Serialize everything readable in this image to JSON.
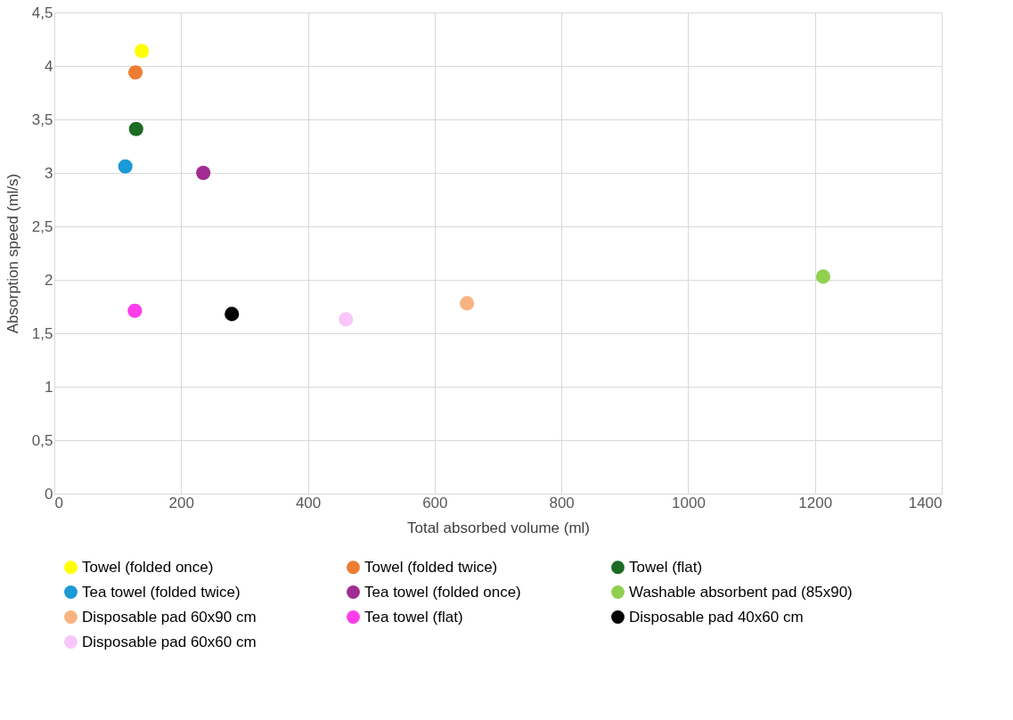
{
  "chart_data": {
    "type": "scatter",
    "xlabel": "Total absorbed volume (ml)",
    "ylabel": "Absorption speed (ml/s)",
    "xlim": [
      0,
      1400
    ],
    "xticks": [
      0,
      200,
      400,
      600,
      800,
      1000,
      1200,
      1400
    ],
    "ylim": [
      0,
      4.5
    ],
    "yticks": [
      0,
      {
        "value": 0.5,
        "label": "0,5"
      },
      1,
      {
        "value": 1.5,
        "label": "1,5"
      },
      2,
      {
        "value": 2.5,
        "label": "2,5"
      },
      3,
      {
        "value": 3.5,
        "label": "3,5"
      },
      4,
      {
        "value": 4.5,
        "label": "4,5"
      }
    ],
    "grid": true,
    "legend": "bottom",
    "marker": "circle",
    "series": [
      {
        "name": "Towel (folded once)",
        "color": "#ffff00",
        "x": [
          138
        ],
        "values": [
          4.14
        ]
      },
      {
        "name": "Towel (folded twice)",
        "color": "#ed7d31",
        "x": [
          128
        ],
        "values": [
          3.94
        ]
      },
      {
        "name": "Towel (flat)",
        "color": "#1e6b24",
        "x": [
          129
        ],
        "values": [
          3.41
        ]
      },
      {
        "name": "Tea towel (folded twice)",
        "color": "#1a9ad6",
        "x": [
          112
        ],
        "values": [
          3.06
        ]
      },
      {
        "name": "Tea towel (folded once)",
        "color": "#a02b93",
        "x": [
          235
        ],
        "values": [
          3.0
        ]
      },
      {
        "name": "Washable absorbent pad (85x90)",
        "color": "#8fd14f",
        "x": [
          1213
        ],
        "values": [
          2.03
        ]
      },
      {
        "name": "Disposable pad 60x90 cm",
        "color": "#f9b381",
        "x": [
          651
        ],
        "values": [
          1.78
        ]
      },
      {
        "name": "Tea towel (flat)",
        "color": "#ff3dea",
        "x": [
          127
        ],
        "values": [
          1.71
        ]
      },
      {
        "name": "Disposable pad 40x60 cm",
        "color": "#000000",
        "x": [
          280
        ],
        "values": [
          1.68
        ]
      },
      {
        "name": "Disposable pad 60x60 cm",
        "color": "#f9c6f9",
        "x": [
          460
        ],
        "values": [
          1.63
        ]
      }
    ]
  }
}
